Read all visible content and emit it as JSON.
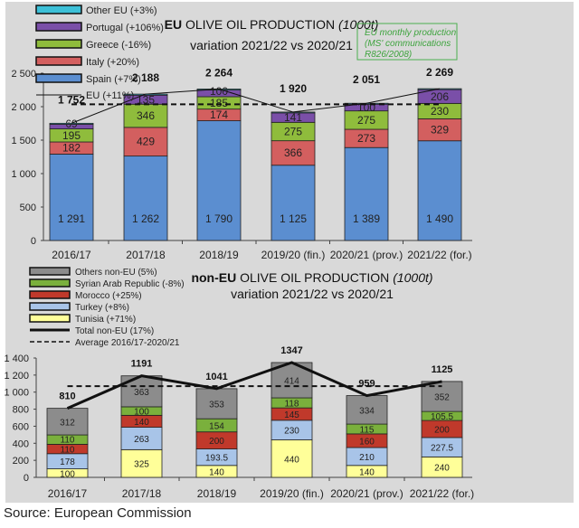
{
  "source": "Source: European Commission",
  "chart_data": [
    {
      "type": "bar",
      "stacked": true,
      "title": "EU OLIVE OIL PRODUCTION",
      "title_bold": "EU",
      "title_rest": " OLIVE OIL PRODUCTION ",
      "unit": "(1000t)",
      "subtitle": "variation 2021/22  vs 2020/21",
      "note": [
        "EU monthly production",
        "(MS' communications",
        "R826/2008)"
      ],
      "categories": [
        "2016/17",
        "2017/18",
        "2018/19",
        "2019/20 (fin.)",
        "2020/21 (prov.)",
        "2021/22 (for.)"
      ],
      "ylim": [
        0,
        2500
      ],
      "yticks": [
        0,
        500,
        1000,
        1500,
        2000,
        2500
      ],
      "ytick_labels": [
        "0",
        "500",
        "1 000",
        "1 500",
        "2 000",
        "2 500"
      ],
      "series": [
        {
          "name": "Spain (+7%)",
          "color": "#5b8ed0",
          "values": [
            1291,
            1262,
            1790,
            1125,
            1389,
            1490
          ],
          "labels": [
            "1 291",
            "1 262",
            "1 790",
            "1 125",
            "1 389",
            "1 490"
          ]
        },
        {
          "name": "Italy (+20%)",
          "color": "#d35f5f",
          "values": [
            182,
            429,
            174,
            366,
            273,
            329
          ],
          "labels": [
            "182",
            "429",
            "174",
            "366",
            "273",
            "329"
          ]
        },
        {
          "name": "Greece (-16%)",
          "color": "#8fbc3c",
          "values": [
            195,
            346,
            185,
            275,
            275,
            230
          ],
          "labels": [
            "195",
            "346",
            "185",
            "275",
            "275",
            "230"
          ]
        },
        {
          "name": "Portugal (+106%)",
          "color": "#7a4fa8",
          "values": [
            69,
            135,
            100,
            141,
            100,
            206
          ],
          "labels": [
            "69",
            "135",
            "100",
            "141",
            "100",
            "206"
          ]
        },
        {
          "name": "Other EU (+3%)",
          "color": "#3cc0d8",
          "values": [
            15,
            16,
            15,
            13,
            14,
            14
          ],
          "labels": [
            "",
            "",
            "",
            "",
            "",
            ""
          ]
        }
      ],
      "total": {
        "name": "EU (+11%)",
        "values": [
          1752,
          2188,
          2264,
          1920,
          2051,
          2269
        ],
        "labels": [
          "1 752",
          "2 188",
          "2 264",
          "1 920",
          "2 051",
          "2 269"
        ]
      },
      "average": 2035
    },
    {
      "type": "bar",
      "stacked": true,
      "title": "non-EU OLIVE OIL PRODUCTION",
      "title_bold": "non-EU",
      "title_rest": " OLIVE OIL PRODUCTION ",
      "unit": "(1000t)",
      "subtitle": "variation 2021/22  vs 2020/21",
      "categories": [
        "2016/17",
        "2017/18",
        "2018/19",
        "2019/20 (fin.)",
        "2020/21 (prov.)",
        "2021/22 (for.)"
      ],
      "ylim": [
        0,
        1400
      ],
      "yticks": [
        0,
        200,
        400,
        600,
        800,
        1000,
        1200,
        1400
      ],
      "ytick_labels": [
        "0",
        "200",
        "400",
        "600",
        "800",
        "1 000",
        "1 200",
        "1 400"
      ],
      "series": [
        {
          "name": "Tunisia (+71%)",
          "color": "#ffff99",
          "values": [
            100,
            325,
            140,
            440,
            140,
            240
          ],
          "labels": [
            "100",
            "325",
            "140",
            "440",
            "140",
            "240"
          ]
        },
        {
          "name": "Turkey (+8%)",
          "color": "#a8c4e8",
          "values": [
            178,
            263,
            193.5,
            230,
            210,
            227.5
          ],
          "labels": [
            "178",
            "263",
            "193.5",
            "230",
            "210",
            "227.5"
          ]
        },
        {
          "name": "Morocco (+25%)",
          "color": "#c0392b",
          "values": [
            110,
            140,
            200,
            145,
            160,
            200
          ],
          "labels": [
            "110",
            "140",
            "200",
            "145",
            "160",
            "200"
          ]
        },
        {
          "name": "Syrian Arab Republic (-8%)",
          "color": "#7ab03c",
          "values": [
            110,
            100,
            154,
            118,
            115,
            105.5
          ],
          "labels": [
            "110",
            "100",
            "154",
            "118",
            "115",
            "105.5"
          ]
        },
        {
          "name": "Others non-EU (5%)",
          "color": "#8c8c8c",
          "values": [
            312,
            363,
            353,
            414,
            334,
            352
          ],
          "labels": [
            "312",
            "363",
            "353",
            "414",
            "334",
            "352"
          ]
        }
      ],
      "total": {
        "name": "Total non-EU (17%)",
        "values": [
          810,
          1191,
          1041,
          1347,
          959,
          1125
        ],
        "labels": [
          "810",
          "1191",
          "1041",
          "1347",
          "959",
          "1125"
        ]
      },
      "average": 1070,
      "average_name": "Average 2016/17-2020/21"
    }
  ]
}
